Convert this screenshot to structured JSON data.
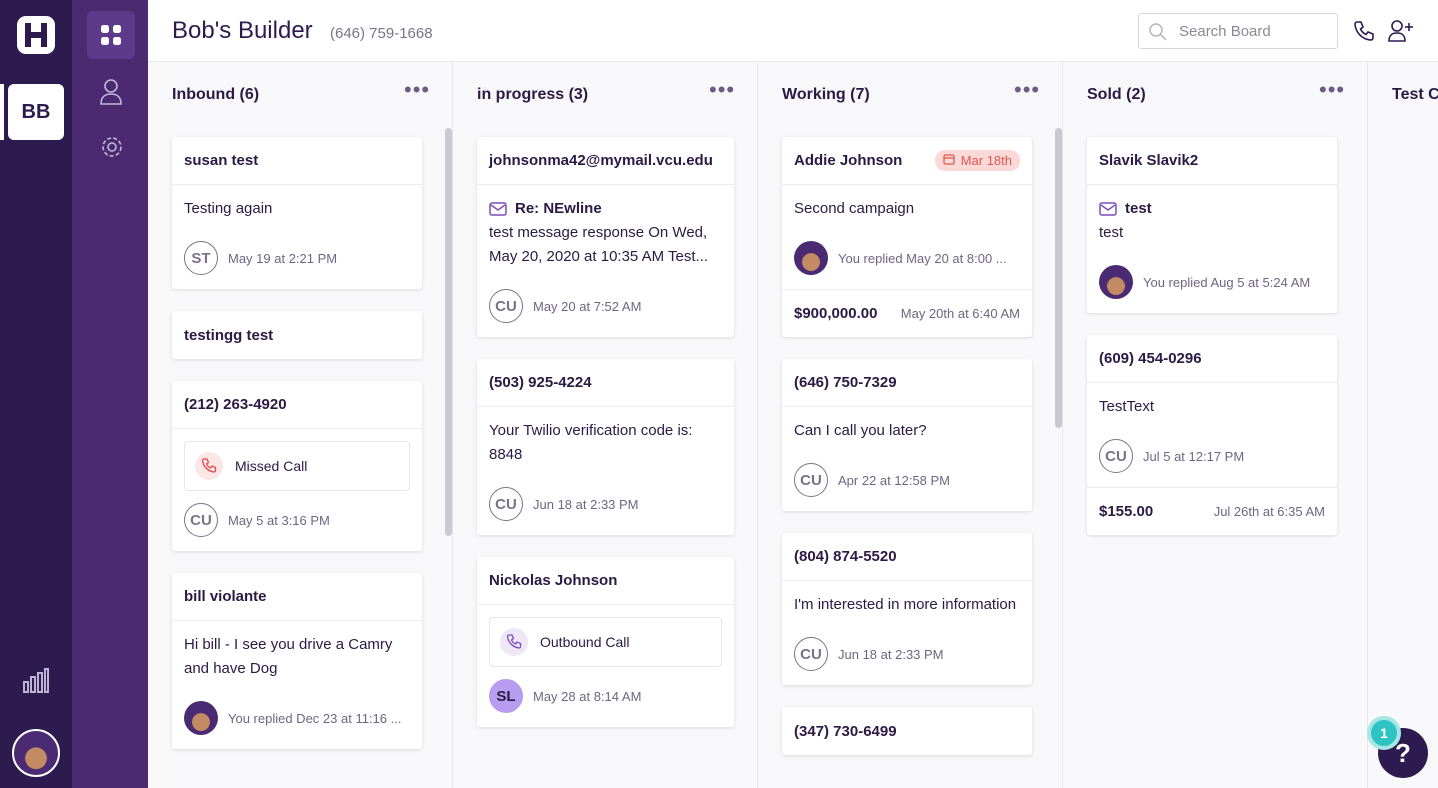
{
  "sidebar": {
    "workspace_badge": "BB"
  },
  "header": {
    "title": "Bob's Builder",
    "phone": "(646) 759-1668",
    "search_placeholder": "Search Board"
  },
  "columns": [
    {
      "title": "Inbound (6)",
      "cards": [
        {
          "title": "susan test",
          "message": "Testing again",
          "avatar": "ST",
          "time": "May 19 at 2:21 PM"
        },
        {
          "title": "testingg test"
        },
        {
          "title": "(212) 263-4920",
          "call": "Missed Call",
          "call_color": "#e5484d",
          "avatar": "CU",
          "time": "May 5 at 3:16 PM"
        },
        {
          "title": "bill violante",
          "message": "Hi bill - I see you drive a Camry and have Dog",
          "time": "You replied Dec 23 at 11:16 ..."
        }
      ]
    },
    {
      "title": "in progress (3)",
      "cards": [
        {
          "title": "johnsonma42@mymail.vcu.edu",
          "subject": "Re: NEwline",
          "message": "test message response On Wed, May 20, 2020 at 10:35 AM Test...",
          "avatar": "CU",
          "time": "May 20 at 7:52 AM"
        },
        {
          "title": "(503) 925-4224",
          "message": "Your Twilio verification code is: 8848",
          "avatar": "CU",
          "time": "Jun 18 at 2:33 PM"
        },
        {
          "title": "Nickolas Johnson",
          "call": "Outbound Call",
          "call_color": "#7c4dbe",
          "avatar": "SL",
          "avatar_color": "#b79cf0",
          "time": "May 28 at 8:14 AM"
        }
      ]
    },
    {
      "title": "Working (7)",
      "cards": [
        {
          "title": "Addie Johnson",
          "tag": "Mar 18th",
          "message": "Second campaign",
          "time": "You replied May 20 at 8:00 ...",
          "amount": "$900,000.00",
          "amount_time": "May 20th at 6:40 AM"
        },
        {
          "title": "(646) 750-7329",
          "message": "Can I call you later?",
          "avatar": "CU",
          "time": "Apr 22 at 12:58 PM"
        },
        {
          "title": "(804) 874-5520",
          "message": "I'm interested in more information",
          "avatar": "CU",
          "time": "Jun 18 at 2:33 PM"
        },
        {
          "title": "(347) 730-6499"
        }
      ]
    },
    {
      "title": "Sold (2)",
      "cards": [
        {
          "title": "Slavik Slavik2",
          "subject": "test",
          "message": "test",
          "time": "You replied Aug 5 at 5:24 AM"
        },
        {
          "title": "(609) 454-0296",
          "message": "TestText",
          "avatar": "CU",
          "time": "Jul 5 at 12:17 PM",
          "amount": "$155.00",
          "amount_time": "Jul 26th at 6:35 AM"
        }
      ]
    },
    {
      "title": "Test C",
      "cards": []
    }
  ],
  "help": {
    "badge": "1",
    "label": "?"
  }
}
